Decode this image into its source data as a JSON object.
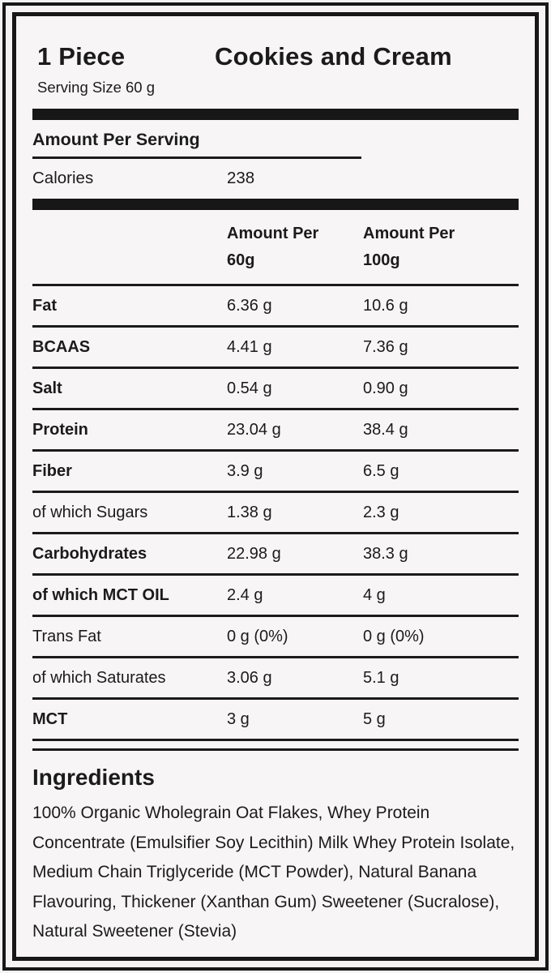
{
  "label_header": {
    "serving_count": "1 Piece",
    "flavor_name": "Cookies and Cream",
    "serving_size": "Serving Size 60 g"
  },
  "per_serving": {
    "heading": "Amount Per Serving",
    "calories_label": "Calories",
    "calories_value": "238"
  },
  "nutrition_table": {
    "col_60g_header": {
      "line1": "Amount Per",
      "line2": "60g"
    },
    "col_100g_header": {
      "line1": "Amount Per",
      "line2": "100g"
    },
    "rows": [
      {
        "label": "Fat",
        "per_60g": "6.36 g",
        "per_100g": "10.6 g",
        "emphasis": true
      },
      {
        "label": "BCAAS",
        "per_60g": "4.41 g",
        "per_100g": "7.36 g",
        "emphasis": true
      },
      {
        "label": "Salt",
        "per_60g": "0.54 g",
        "per_100g": "0.90 g",
        "emphasis": true
      },
      {
        "label": "Protein",
        "per_60g": "23.04 g",
        "per_100g": "38.4 g",
        "emphasis": true
      },
      {
        "label": "Fiber",
        "per_60g": "3.9 g",
        "per_100g": "6.5 g",
        "emphasis": true
      },
      {
        "label": "of which Sugars",
        "per_60g": "1.38 g",
        "per_100g": "2.3 g",
        "emphasis": false
      },
      {
        "label": "Carbohydrates",
        "per_60g": "22.98 g",
        "per_100g": "38.3 g",
        "emphasis": true
      },
      {
        "label": "of which MCT OIL",
        "per_60g": "2.4 g",
        "per_100g": "4 g",
        "emphasis": true
      },
      {
        "label": "Trans Fat",
        "per_60g": "0 g (0%)",
        "per_100g": "0 g (0%)",
        "emphasis": false
      },
      {
        "label": "of which Saturates",
        "per_60g": "3.06 g",
        "per_100g": "5.1 g",
        "emphasis": false
      },
      {
        "label": "MCT",
        "per_60g": "3 g",
        "per_100g": "5 g",
        "emphasis": true
      }
    ]
  },
  "ingredients": {
    "heading": "Ingredients",
    "text": "100% Organic Wholegrain Oat Flakes, Whey Protein Concentrate (Emulsifier Soy Lecithin) Milk Whey Protein Isolate, Medium Chain Triglyceride (MCT Powder), Natural Banana Flavouring, Thickener (Xanthan Gum) Sweetener (Sucralose), Natural Sweetener (Stevia)"
  },
  "colors": {
    "text": "#1b1b1b",
    "background": "#f8f5f6",
    "rule": "#171717"
  }
}
